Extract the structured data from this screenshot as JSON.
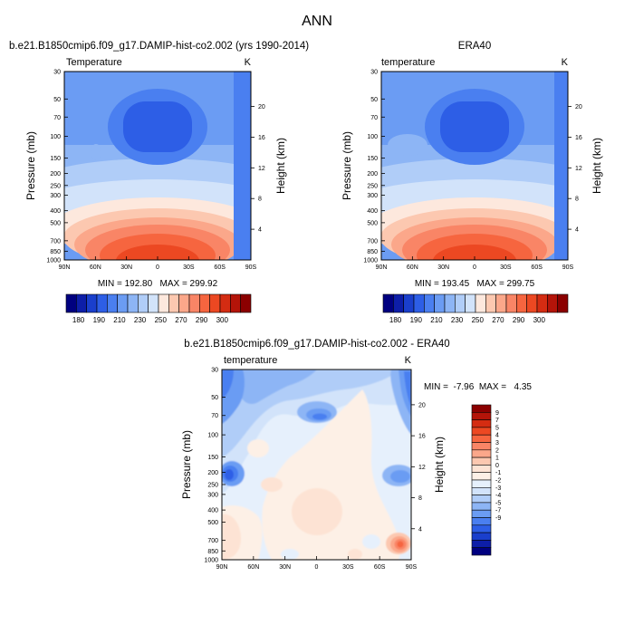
{
  "page": {
    "title": "ANN"
  },
  "colors": {
    "cb1": [
      "#000080",
      "#0d1ea8",
      "#1a3fcc",
      "#2d5ee6",
      "#4a7ff0",
      "#6b9cf3",
      "#8db5f5",
      "#b0cdf8",
      "#d2e3fa",
      "#fde8dd",
      "#fcc8b0",
      "#fba78a",
      "#f98566",
      "#f6653f",
      "#ec4822",
      "#d42c12",
      "#b41409",
      "#8b0000"
    ],
    "cb3": [
      "#000080",
      "#0d1ea8",
      "#1a3fcc",
      "#2d5ee6",
      "#4a7ff0",
      "#6b9cf3",
      "#8db5f5",
      "#b0cdf8",
      "#d2e3fa",
      "#e6f0fc",
      "#fdf0e6",
      "#fde3d4",
      "#fcc8b0",
      "#fba78a",
      "#f98566",
      "#f6653f",
      "#ec4822",
      "#d42c12",
      "#b41409",
      "#8b0000"
    ]
  },
  "chart_data": [
    {
      "type": "heatmap",
      "title": "b.e21.B1850cmip6.f09_g17.DAMIP-hist-co2.002 (yrs 1990-2014)",
      "left_label": "Temperature",
      "units": "K",
      "ylabel": "Pressure (mb)",
      "y2label": "Height (km)",
      "x_ticks": [
        "90N",
        "60N",
        "30N",
        "0",
        "30S",
        "60S",
        "90S"
      ],
      "y_ticks": [
        "30",
        "50",
        "70",
        "100",
        "150",
        "200",
        "250",
        "300",
        "400",
        "500",
        "700",
        "850",
        "1000"
      ],
      "y2_ticks": [
        "20",
        "16",
        "12",
        "8",
        "4"
      ],
      "min": 192.8,
      "max": 299.92,
      "stats_text": "MIN = 192.80   MAX = 299.92",
      "colorbar_labels": [
        "180",
        "190",
        "210",
        "230",
        "250",
        "270",
        "290",
        "300"
      ]
    },
    {
      "type": "heatmap",
      "title": "ERA40",
      "left_label": "temperature",
      "units": "K",
      "ylabel": "Pressure (mb)",
      "y2label": "Height (km)",
      "x_ticks": [
        "90N",
        "60N",
        "30N",
        "0",
        "30S",
        "60S",
        "90S"
      ],
      "y_ticks": [
        "30",
        "50",
        "70",
        "100",
        "150",
        "200",
        "250",
        "300",
        "400",
        "500",
        "700",
        "850",
        "1000"
      ],
      "y2_ticks": [
        "20",
        "16",
        "12",
        "8",
        "4"
      ],
      "min": 193.45,
      "max": 299.75,
      "stats_text": "MIN = 193.45   MAX = 299.75",
      "colorbar_labels": [
        "180",
        "190",
        "210",
        "230",
        "250",
        "270",
        "290",
        "300"
      ]
    },
    {
      "type": "heatmap",
      "title": "b.e21.B1850cmip6.f09_g17.DAMIP-hist-co2.002 - ERA40",
      "left_label": "temperature",
      "units": "K",
      "ylabel": "Pressure (mb)",
      "y2label": "Height (km)",
      "x_ticks": [
        "90N",
        "60N",
        "30N",
        "0",
        "30S",
        "60S",
        "90S"
      ],
      "y_ticks": [
        "30",
        "50",
        "70",
        "100",
        "150",
        "200",
        "250",
        "300",
        "400",
        "500",
        "700",
        "850",
        "1000"
      ],
      "y2_ticks": [
        "20",
        "16",
        "12",
        "8",
        "4"
      ],
      "min": -7.96,
      "max": 4.35,
      "stats_text": "MIN =  -7.96  MAX =   4.35",
      "colorbar_labels": [
        "9",
        "7",
        "5",
        "4",
        "3",
        "2",
        "1",
        "0",
        "-1",
        "-2",
        "-3",
        "-4",
        "-5",
        "-7",
        "-9"
      ]
    }
  ]
}
